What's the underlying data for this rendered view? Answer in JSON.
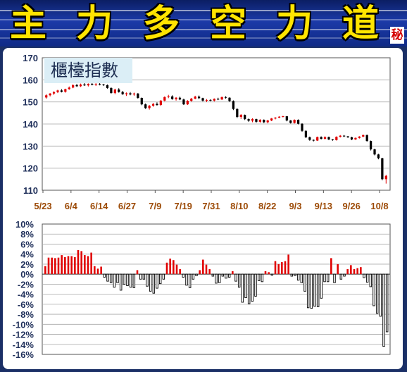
{
  "banner": {
    "chars": [
      "主",
      "力",
      "多",
      "空",
      "力",
      "道"
    ],
    "secret": "秘",
    "color": "#ffe400",
    "background": "#1c3aa8"
  },
  "chart_data": [
    {
      "type": "candlestick",
      "title": "櫃檯指數",
      "ylim": [
        110,
        170
      ],
      "yticks": [
        "170",
        "160",
        "150",
        "140",
        "130",
        "120",
        "110"
      ],
      "xtick_labels": [
        "5/23",
        "6/4",
        "6/14",
        "6/27",
        "7/9",
        "7/19",
        "7/31",
        "8/10",
        "8/22",
        "9/3",
        "9/13",
        "9/26",
        "10/8"
      ],
      "up_color": "#e00000",
      "down_color": "#000000",
      "grid": true,
      "candles": [
        [
          152.0,
          153.5,
          151.5,
          153.0
        ],
        [
          153.0,
          154.0,
          152.5,
          153.8
        ],
        [
          153.8,
          154.8,
          153.2,
          154.5
        ],
        [
          154.5,
          155.5,
          154.0,
          155.2
        ],
        [
          155.2,
          155.8,
          154.3,
          154.6
        ],
        [
          154.6,
          156.0,
          154.2,
          155.8
        ],
        [
          155.8,
          157.0,
          155.5,
          156.5
        ],
        [
          156.5,
          158.0,
          156.2,
          157.6
        ],
        [
          157.6,
          158.2,
          156.8,
          157.1
        ],
        [
          157.1,
          158.3,
          156.8,
          157.9
        ],
        [
          157.9,
          158.6,
          157.2,
          157.5
        ],
        [
          157.5,
          158.4,
          157.0,
          158.2
        ],
        [
          158.2,
          158.8,
          157.5,
          157.8
        ],
        [
          157.8,
          158.5,
          157.2,
          158.1
        ],
        [
          158.1,
          158.7,
          157.5,
          157.9
        ],
        [
          157.9,
          158.2,
          157.2,
          157.6
        ],
        [
          157.6,
          157.9,
          156.0,
          156.3
        ],
        [
          156.3,
          156.6,
          153.8,
          154.0
        ],
        [
          154.0,
          156.0,
          153.5,
          155.6
        ],
        [
          155.6,
          156.2,
          154.2,
          154.5
        ],
        [
          154.5,
          155.0,
          153.2,
          153.5
        ],
        [
          153.5,
          154.3,
          152.7,
          153.9
        ],
        [
          153.9,
          154.5,
          153.0,
          153.4
        ],
        [
          153.4,
          154.2,
          152.8,
          153.8
        ],
        [
          153.8,
          154.0,
          151.5,
          151.8
        ],
        [
          151.8,
          152.0,
          148.5,
          148.9
        ],
        [
          148.9,
          149.3,
          146.8,
          147.2
        ],
        [
          147.2,
          148.6,
          146.5,
          148.3
        ],
        [
          148.3,
          149.5,
          147.8,
          149.1
        ],
        [
          149.1,
          149.8,
          148.3,
          148.6
        ],
        [
          148.6,
          150.8,
          148.2,
          150.6
        ],
        [
          150.6,
          152.5,
          150.3,
          152.2
        ],
        [
          152.2,
          153.2,
          151.7,
          152.5
        ],
        [
          152.5,
          153.0,
          151.0,
          151.3
        ],
        [
          151.3,
          152.2,
          150.6,
          151.9
        ],
        [
          151.9,
          152.4,
          150.8,
          151.1
        ],
        [
          151.1,
          151.5,
          148.6,
          148.9
        ],
        [
          148.9,
          150.8,
          148.6,
          150.5
        ],
        [
          150.5,
          151.8,
          150.1,
          151.5
        ],
        [
          151.5,
          152.8,
          151.2,
          152.4
        ],
        [
          152.4,
          152.9,
          151.3,
          151.7
        ],
        [
          151.7,
          151.9,
          150.2,
          150.6
        ],
        [
          150.6,
          151.3,
          149.9,
          150.9
        ],
        [
          150.9,
          151.2,
          150.3,
          150.6
        ],
        [
          150.6,
          151.6,
          150.2,
          151.4
        ],
        [
          151.4,
          151.9,
          150.8,
          151.1
        ],
        [
          151.1,
          152.4,
          150.9,
          152.2
        ],
        [
          152.2,
          152.6,
          151.5,
          151.9
        ],
        [
          151.9,
          152.1,
          150.0,
          150.4
        ],
        [
          150.4,
          150.7,
          146.3,
          146.8
        ],
        [
          146.8,
          147.1,
          142.7,
          143.2
        ],
        [
          143.2,
          144.5,
          142.3,
          144.1
        ],
        [
          144.1,
          144.3,
          141.8,
          142.2
        ],
        [
          142.2,
          142.5,
          141.0,
          141.5
        ],
        [
          141.5,
          142.6,
          140.8,
          142.2
        ],
        [
          142.2,
          142.4,
          140.6,
          141.0
        ],
        [
          141.0,
          142.2,
          140.6,
          141.9
        ],
        [
          141.9,
          142.1,
          140.4,
          140.8
        ],
        [
          140.8,
          141.9,
          140.3,
          141.6
        ],
        [
          141.6,
          142.7,
          141.3,
          142.5
        ],
        [
          142.5,
          143.1,
          142.1,
          142.9
        ],
        [
          142.9,
          143.5,
          142.7,
          143.3
        ],
        [
          143.3,
          143.7,
          143.0,
          143.5
        ],
        [
          143.5,
          143.6,
          141.2,
          141.6
        ],
        [
          141.6,
          141.8,
          140.2,
          140.5
        ],
        [
          140.5,
          142.1,
          140.2,
          141.9
        ],
        [
          141.9,
          142.1,
          139.8,
          140.1
        ],
        [
          140.1,
          140.3,
          136.5,
          136.9
        ],
        [
          136.9,
          137.1,
          133.6,
          134.0
        ],
        [
          134.0,
          134.3,
          132.4,
          132.8
        ],
        [
          132.8,
          133.0,
          132.1,
          132.5
        ],
        [
          132.5,
          134.3,
          132.3,
          134.1
        ],
        [
          134.1,
          134.4,
          133.0,
          133.3
        ],
        [
          133.3,
          134.4,
          133.0,
          134.1
        ],
        [
          134.1,
          134.3,
          132.7,
          133.0
        ],
        [
          133.0,
          133.2,
          132.4,
          132.7
        ],
        [
          132.7,
          134.4,
          132.5,
          134.2
        ],
        [
          134.2,
          135.0,
          133.9,
          134.7
        ],
        [
          134.7,
          135.0,
          134.1,
          134.4
        ],
        [
          134.4,
          134.6,
          133.7,
          134.0
        ],
        [
          134.0,
          134.2,
          132.7,
          133.0
        ],
        [
          133.0,
          133.9,
          132.8,
          133.7
        ],
        [
          133.7,
          134.5,
          133.4,
          134.3
        ],
        [
          134.3,
          135.2,
          134.0,
          135.0
        ],
        [
          135.0,
          135.2,
          132.0,
          132.3
        ],
        [
          132.3,
          132.5,
          128.0,
          128.5
        ],
        [
          128.5,
          128.8,
          125.8,
          126.2
        ],
        [
          126.2,
          126.5,
          124.0,
          124.5
        ],
        [
          124.5,
          124.7,
          114.5,
          115.0
        ],
        [
          115.0,
          117.0,
          113.0,
          116.5
        ]
      ]
    },
    {
      "type": "bar",
      "ylim": [
        -16,
        10
      ],
      "yticks": [
        "10%",
        "8%",
        "6%",
        "4%",
        "2%",
        "0%",
        "-2%",
        "-4%",
        "-6%",
        "-8%",
        "-10%",
        "-12%",
        "-14%",
        "-16%"
      ],
      "pos_color": "#e00000",
      "neg_color": "#000000",
      "grid": true,
      "values": [
        1.6,
        3.3,
        3.3,
        3.2,
        3.3,
        3.8,
        3.4,
        3.6,
        3.6,
        3.4,
        4.8,
        4.6,
        3.8,
        3.6,
        4.3,
        1.6,
        1.1,
        1.5,
        -0.6,
        -1.4,
        -1.7,
        -2.6,
        -1.7,
        -3.2,
        -2.0,
        -2.3,
        -2.6,
        -2.7,
        0.8,
        -1.0,
        -1.0,
        -2.4,
        -3.4,
        -3.8,
        -2.8,
        -1.9,
        -1.0,
        2.3,
        3.1,
        2.8,
        1.9,
        1.0,
        -0.6,
        -2.2,
        -2.7,
        -1.0,
        -0.3,
        0.8,
        2.9,
        1.9,
        1.0,
        -0.4,
        -1.8,
        -1.7,
        -0.4,
        -0.8,
        -0.6,
        0.6,
        -1.4,
        -2.6,
        -5.6,
        -4.7,
        -5.9,
        -5.4,
        -4.4,
        -1.3,
        -1.5,
        0.6,
        0.4,
        -0.2,
        2.6,
        2.0,
        2.4,
        2.6,
        3.9,
        -0.4,
        -0.3,
        -1.2,
        -1.7,
        -3.4,
        -6.7,
        -6.8,
        -6.4,
        -6.5,
        -4.8,
        -1.5,
        -1.5,
        3.2,
        -1.7,
        2.0,
        -1.0,
        -0.4,
        1.0,
        1.8,
        1.0,
        1.2,
        1.4,
        -0.7,
        -1.6,
        -2.5,
        -6.3,
        -7.8,
        -8.4,
        -14.4,
        -11.5
      ]
    }
  ]
}
